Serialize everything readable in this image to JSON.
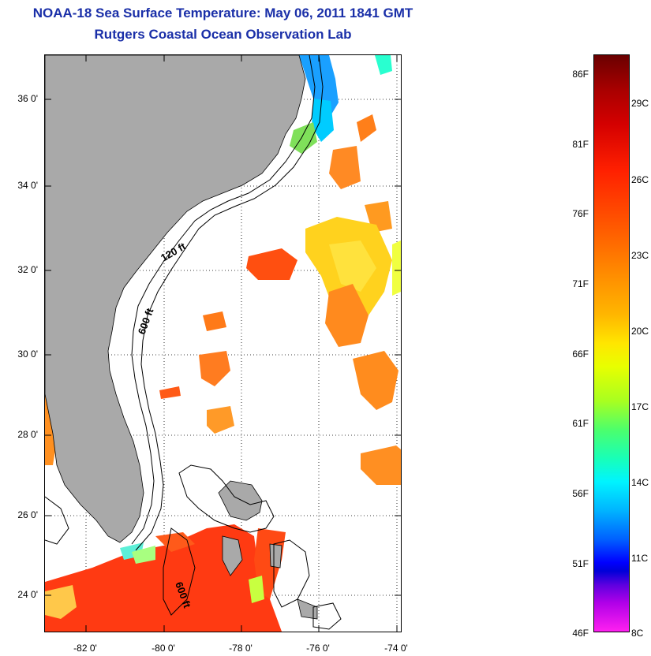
{
  "title": "NOAA-18 Sea Surface Temperature:  May 06, 2011 1841 GMT",
  "subtitle": "Rutgers Coastal Ocean Observation Lab",
  "map": {
    "lat_ticks": [
      "36 0'",
      "34 0'",
      "32 0'",
      "30 0'",
      "28 0'",
      "26 0'",
      "24 0'"
    ],
    "lon_ticks": [
      "-82 0'",
      "-80 0'",
      "-78 0'",
      "-76 0'",
      "-74 0'"
    ],
    "contour_labels": [
      "120 ft",
      "600 ft",
      "600 ft"
    ],
    "colors": {
      "land": "#a9a9a9",
      "ocean_nodata": "#ffffff",
      "contour": "#000000"
    }
  },
  "colorbar": {
    "fahrenheit_labels": [
      "86F",
      "81F",
      "76F",
      "71F",
      "66F",
      "61F",
      "56F",
      "51F",
      "46F"
    ],
    "celsius_labels": [
      "29C",
      "26C",
      "23C",
      "20C",
      "17C",
      "14C",
      "11C",
      "8C"
    ]
  }
}
